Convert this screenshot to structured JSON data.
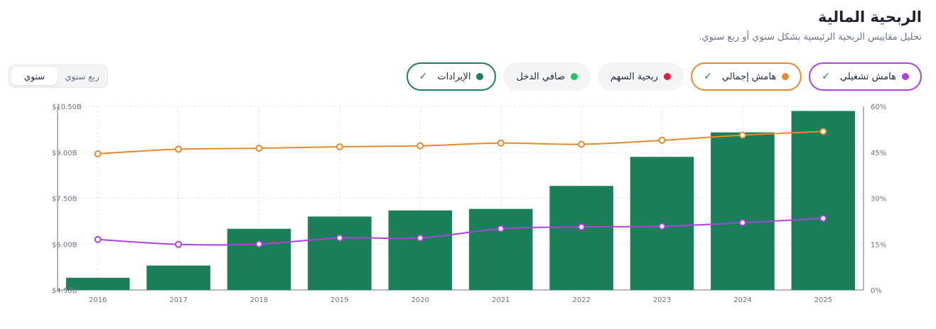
{
  "header": {
    "title": "الربحية المالية",
    "subtitle": "تحليل مقاييس الربحية الرئيسية بشكل سنوي أو ربع سنوي."
  },
  "period_toggle": {
    "options": [
      {
        "label": "سنوي",
        "active": true
      },
      {
        "label": "ربع سنوي",
        "active": false
      }
    ]
  },
  "metrics": [
    {
      "label": "الإيرادات",
      "color": "#1b7f5a",
      "selected": true
    },
    {
      "label": "صافي الدخل",
      "color": "#22c55e",
      "selected": false
    },
    {
      "label": "ربحية السهم",
      "color": "#e11d48",
      "selected": false
    },
    {
      "label": "هامش إجمالي",
      "color": "#e8892b",
      "selected": true
    },
    {
      "label": "هامش تشغيلي",
      "color": "#b040e0",
      "selected": true
    }
  ],
  "chart_data": {
    "type": "bar",
    "categories": [
      "2016",
      "2017",
      "2018",
      "2019",
      "2020",
      "2021",
      "2022",
      "2023",
      "2024",
      "2025"
    ],
    "series": [
      {
        "name": "الإيرادات",
        "kind": "bar",
        "axis": "left",
        "color": "#1b7f5a",
        "values": [
          4.9,
          5.3,
          6.5,
          6.9,
          7.1,
          7.15,
          7.9,
          8.85,
          9.65,
          10.35
        ]
      },
      {
        "name": "هامش إجمالي",
        "kind": "line",
        "axis": "right",
        "color": "#e8892b",
        "values": [
          44.5,
          46.0,
          46.3,
          46.8,
          47.1,
          48.0,
          47.6,
          48.9,
          50.6,
          51.8
        ]
      },
      {
        "name": "هامش تشغيلي",
        "kind": "line",
        "axis": "right",
        "color": "#b040e0",
        "values": [
          16.5,
          14.9,
          15.0,
          17.0,
          17.0,
          20.0,
          20.6,
          20.8,
          22.0,
          23.4
        ]
      }
    ],
    "left_axis": {
      "ticks": [
        "$4.50B",
        "$6.00B",
        "$7.50B",
        "$9.00B",
        "$10.50B"
      ],
      "ylim": [
        4.5,
        10.5
      ]
    },
    "right_axis": {
      "ticks": [
        "0%",
        "15%",
        "30%",
        "45%",
        "60%"
      ],
      "ylim": [
        0,
        60
      ]
    },
    "grid": true
  }
}
